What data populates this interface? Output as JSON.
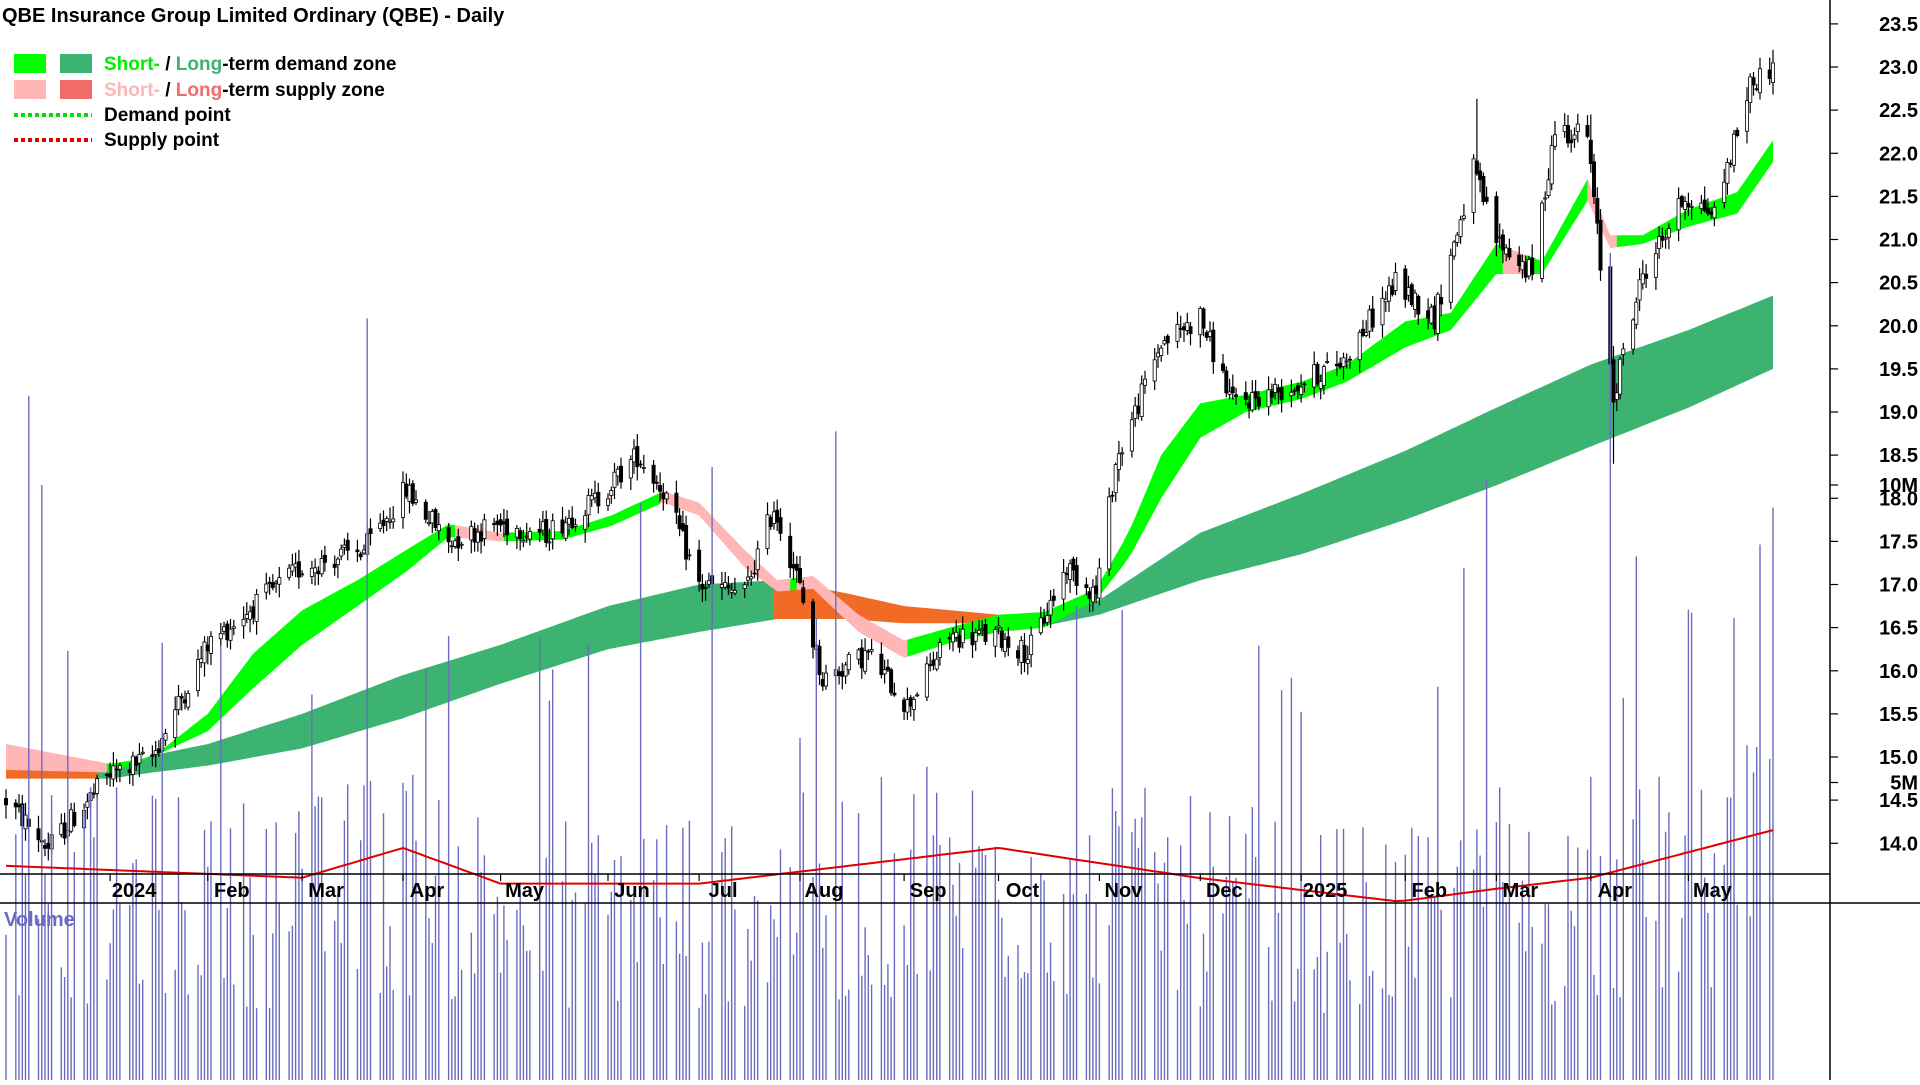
{
  "chart_data": [
    {
      "type": "candlestick",
      "title": "QBE Insurance Group Limited Ordinary (QBE) - Daily",
      "legend": {
        "placement": "top-left",
        "entries": [
          {
            "parts": [
              {
                "text": "Short-",
                "color": "#00ee00"
              },
              {
                "text": " / ",
                "color": "#000000"
              },
              {
                "text": "Long",
                "color": "#3cb371"
              },
              {
                "text": "-term demand zone",
                "color": "#000000"
              }
            ],
            "swatches": [
              "#00ff00",
              "#3cb371"
            ],
            "line": false
          },
          {
            "parts": [
              {
                "text": "Short-",
                "color": "#ffb6b6"
              },
              {
                "text": " / ",
                "color": "#000000"
              },
              {
                "text": "Long",
                "color": "#f26b6b"
              },
              {
                "text": "-term supply zone",
                "color": "#000000"
              }
            ],
            "swatches": [
              "#ffb6b6",
              "#f26b6b"
            ],
            "line": false
          },
          {
            "parts": [
              {
                "text": "Demand point",
                "color": "#000000"
              }
            ],
            "swatches": [
              "#00dd00"
            ],
            "line": true
          },
          {
            "parts": [
              {
                "text": "Supply point",
                "color": "#000000"
              }
            ],
            "swatches": [
              "#e00000"
            ],
            "line": true
          }
        ]
      },
      "y_axis": {
        "side": "right",
        "ylim": [
          13.65,
          23.75
        ],
        "ticks": [
          "23.5",
          "23.0",
          "22.5",
          "22.0",
          "21.5",
          "21.0",
          "20.5",
          "20.0",
          "19.5",
          "19.0",
          "18.5",
          "18.0",
          "17.5",
          "17.0",
          "16.5",
          "16.0",
          "15.5",
          "15.0",
          "14.5",
          "14.0"
        ]
      },
      "x_axis": {
        "ticks": [
          {
            "label": "2024",
            "date": "2024-01-02"
          },
          {
            "label": "Feb",
            "date": "2024-02-01"
          },
          {
            "label": "Mar",
            "date": "2024-03-01"
          },
          {
            "label": "Apr",
            "date": "2024-04-01"
          },
          {
            "label": "May",
            "date": "2024-05-01"
          },
          {
            "label": "Jun",
            "date": "2024-06-03"
          },
          {
            "label": "Jul",
            "date": "2024-07-01"
          },
          {
            "label": "Aug",
            "date": "2024-08-01"
          },
          {
            "label": "Sep",
            "date": "2024-09-02"
          },
          {
            "label": "Oct",
            "date": "2024-10-01"
          },
          {
            "label": "Nov",
            "date": "2024-11-01"
          },
          {
            "label": "Dec",
            "date": "2024-12-02"
          },
          {
            "label": "2025",
            "date": "2025-01-02"
          },
          {
            "label": "Feb",
            "date": "2025-02-03"
          },
          {
            "label": "Mar",
            "date": "2025-03-03"
          },
          {
            "label": "Apr",
            "date": "2025-04-01"
          },
          {
            "label": "May",
            "date": "2025-05-01"
          }
        ]
      },
      "price_anchors": [
        [
          "2023-12-01",
          14.5
        ],
        [
          "2023-12-14",
          13.95
        ],
        [
          "2024-01-02",
          14.8
        ],
        [
          "2024-01-15",
          15.0
        ],
        [
          "2024-02-01",
          16.3
        ],
        [
          "2024-02-20",
          16.9
        ],
        [
          "2024-03-01",
          17.2
        ],
        [
          "2024-03-20",
          17.4
        ],
        [
          "2024-04-02",
          18.1
        ],
        [
          "2024-04-15",
          17.5
        ],
        [
          "2024-04-30",
          17.7
        ],
        [
          "2024-05-15",
          17.6
        ],
        [
          "2024-05-31",
          18.0
        ],
        [
          "2024-06-12",
          18.5
        ],
        [
          "2024-06-20",
          18.1
        ],
        [
          "2024-07-01",
          17.0
        ],
        [
          "2024-07-15",
          16.9
        ],
        [
          "2024-07-24",
          17.9
        ],
        [
          "2024-07-31",
          17.1
        ],
        [
          "2024-08-08",
          15.9
        ],
        [
          "2024-08-22",
          16.2
        ],
        [
          "2024-09-03",
          15.6
        ],
        [
          "2024-09-16",
          16.4
        ],
        [
          "2024-10-01",
          16.4
        ],
        [
          "2024-10-10",
          16.2
        ],
        [
          "2024-10-22",
          17.2
        ],
        [
          "2024-10-31",
          16.9
        ],
        [
          "2024-11-06",
          18.4
        ],
        [
          "2024-11-20",
          19.8
        ],
        [
          "2024-12-02",
          20.1
        ],
        [
          "2024-12-12",
          19.1
        ],
        [
          "2024-12-31",
          19.3
        ],
        [
          "2025-01-15",
          19.6
        ],
        [
          "2025-01-31",
          20.5
        ],
        [
          "2025-02-12",
          20.1
        ],
        [
          "2025-02-24",
          21.8
        ],
        [
          "2025-03-03",
          21.0
        ],
        [
          "2025-03-14",
          20.6
        ],
        [
          "2025-03-21",
          22.3
        ],
        [
          "2025-03-31",
          22.2
        ],
        [
          "2025-04-04",
          20.7
        ],
        [
          "2025-04-08",
          19.2
        ],
        [
          "2025-04-17",
          20.6
        ],
        [
          "2025-04-30",
          21.5
        ],
        [
          "2025-05-09",
          21.3
        ],
        [
          "2025-05-20",
          22.8
        ],
        [
          "2025-05-27",
          23.0
        ]
      ],
      "notable_highs": [
        [
          "2025-02-25",
          22.63
        ],
        [
          "2025-04-01",
          22.45
        ],
        [
          "2025-05-27",
          23.2
        ]
      ],
      "notable_lows": [
        [
          "2023-12-14",
          13.8
        ],
        [
          "2025-04-08",
          18.4
        ]
      ],
      "short_term_zone": [
        [
          "2023-12-01",
          15.15,
          14.85
        ],
        [
          "2024-01-02",
          14.92,
          14.82
        ],
        [
          "2024-01-15",
          15.0,
          15.0
        ],
        [
          "2024-02-01",
          15.5,
          15.3
        ],
        [
          "2024-02-15",
          16.2,
          15.8
        ],
        [
          "2024-03-01",
          16.7,
          16.3
        ],
        [
          "2024-03-18",
          17.05,
          16.75
        ],
        [
          "2024-04-02",
          17.4,
          17.15
        ],
        [
          "2024-04-15",
          17.7,
          17.55
        ],
        [
          "2024-05-01",
          17.6,
          17.5
        ],
        [
          "2024-05-20",
          17.62,
          17.52
        ],
        [
          "2024-06-04",
          17.8,
          17.68
        ],
        [
          "2024-06-20",
          18.08,
          17.95
        ],
        [
          "2024-07-01",
          17.95,
          17.8
        ],
        [
          "2024-07-15",
          17.4,
          17.2
        ],
        [
          "2024-07-25",
          17.05,
          16.92
        ],
        [
          "2024-08-05",
          17.1,
          16.95
        ],
        [
          "2024-08-19",
          16.65,
          16.45
        ],
        [
          "2024-09-02",
          16.35,
          16.15
        ],
        [
          "2024-09-16",
          16.5,
          16.32
        ],
        [
          "2024-10-01",
          16.65,
          16.45
        ],
        [
          "2024-10-15",
          16.68,
          16.5
        ],
        [
          "2024-10-31",
          16.95,
          16.82
        ],
        [
          "2024-11-10",
          17.6,
          17.3
        ],
        [
          "2024-11-20",
          18.5,
          18.0
        ],
        [
          "2024-12-02",
          19.1,
          18.7
        ],
        [
          "2024-12-16",
          19.2,
          19.0
        ],
        [
          "2025-01-02",
          19.35,
          19.15
        ],
        [
          "2025-01-16",
          19.55,
          19.35
        ],
        [
          "2025-02-03",
          20.05,
          19.75
        ],
        [
          "2025-02-17",
          20.15,
          19.95
        ],
        [
          "2025-03-03",
          20.95,
          20.6
        ],
        [
          "2025-03-17",
          20.75,
          20.6
        ],
        [
          "2025-03-31",
          21.7,
          21.45
        ],
        [
          "2025-04-07",
          21.05,
          20.9
        ],
        [
          "2025-04-17",
          21.05,
          20.95
        ],
        [
          "2025-05-01",
          21.35,
          21.15
        ],
        [
          "2025-05-16",
          21.55,
          21.3
        ],
        [
          "2025-05-27",
          22.15,
          21.9
        ]
      ],
      "long_term_zone": [
        [
          "2023-12-01",
          15.0,
          14.75
        ],
        [
          "2024-01-02",
          14.85,
          14.75
        ],
        [
          "2024-01-15",
          15.02,
          14.82
        ],
        [
          "2024-02-01",
          15.15,
          14.9
        ],
        [
          "2024-03-01",
          15.5,
          15.1
        ],
        [
          "2024-04-01",
          15.95,
          15.45
        ],
        [
          "2024-05-01",
          16.3,
          15.85
        ],
        [
          "2024-06-03",
          16.75,
          16.25
        ],
        [
          "2024-07-01",
          17.0,
          16.45
        ],
        [
          "2024-07-25",
          17.05,
          16.6
        ],
        [
          "2024-08-15",
          16.9,
          16.6
        ],
        [
          "2024-09-02",
          16.75,
          16.55
        ],
        [
          "2024-10-01",
          16.65,
          16.55
        ],
        [
          "2024-10-15",
          16.6,
          16.52
        ],
        [
          "2024-11-01",
          16.82,
          16.65
        ],
        [
          "2024-12-02",
          17.6,
          17.05
        ],
        [
          "2025-01-02",
          18.05,
          17.35
        ],
        [
          "2025-02-03",
          18.55,
          17.75
        ],
        [
          "2025-03-03",
          19.05,
          18.15
        ],
        [
          "2025-04-01",
          19.55,
          18.6
        ],
        [
          "2025-05-01",
          19.95,
          19.05
        ],
        [
          "2025-05-27",
          20.35,
          19.5
        ]
      ]
    },
    {
      "type": "bar",
      "title": "Volume",
      "y_axis": {
        "side": "right",
        "ylim": [
          0,
          13500000
        ],
        "ticks": [
          "10M",
          "5M"
        ]
      },
      "moving_average_level": [
        [
          "2023-12-01",
          3.6
        ],
        [
          "2024-03-01",
          3.4
        ],
        [
          "2024-04-01",
          3.9
        ],
        [
          "2024-05-01",
          3.3
        ],
        [
          "2024-07-01",
          3.3
        ],
        [
          "2024-10-01",
          3.9
        ],
        [
          "2024-12-01",
          3.4
        ],
        [
          "2025-02-01",
          3.0
        ],
        [
          "2025-03-01",
          3.2
        ],
        [
          "2025-04-01",
          3.4
        ],
        [
          "2025-05-27",
          4.2
        ]
      ],
      "volume_spikes": [
        [
          "2023-12-08",
          11.5
        ],
        [
          "2023-12-12",
          10.0
        ],
        [
          "2024-03-21",
          12.8
        ],
        [
          "2024-06-13",
          9.7
        ],
        [
          "2024-07-05",
          10.3
        ],
        [
          "2024-08-12",
          10.9
        ],
        [
          "2024-11-08",
          7.9
        ],
        [
          "2024-12-20",
          7.3
        ],
        [
          "2025-02-21",
          8.6
        ],
        [
          "2025-02-28",
          10.1
        ],
        [
          "2025-04-07",
          13.9
        ],
        [
          "2025-04-15",
          8.8
        ],
        [
          "2025-05-23",
          9.0
        ]
      ]
    }
  ]
}
